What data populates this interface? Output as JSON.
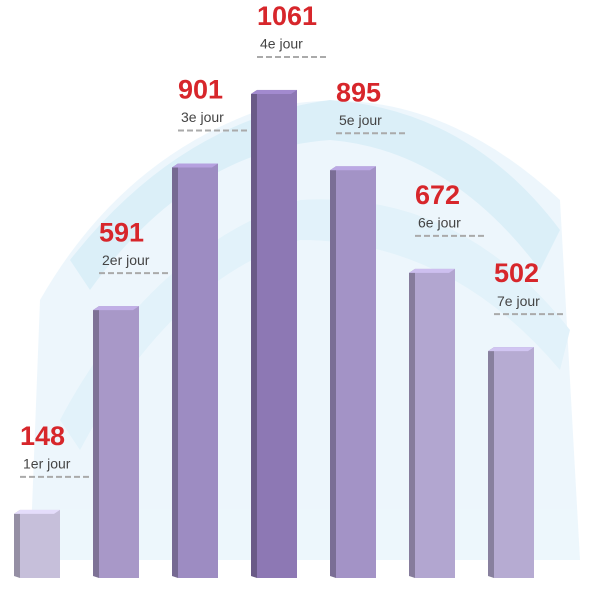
{
  "chart_data": {
    "type": "bar",
    "categories": [
      "1er jour",
      "2er jour",
      "3e jour",
      "4e jour",
      "5e jour",
      "6e jour",
      "7e jour"
    ],
    "values": [
      148,
      591,
      901,
      1061,
      895,
      672,
      502
    ],
    "colors": [
      "#c6bfda",
      "#a898c8",
      "#9d8cc2",
      "#8d78b4",
      "#a393c6",
      "#b2a6d0",
      "#b6abd2"
    ],
    "label_color": "#d7262b"
  }
}
